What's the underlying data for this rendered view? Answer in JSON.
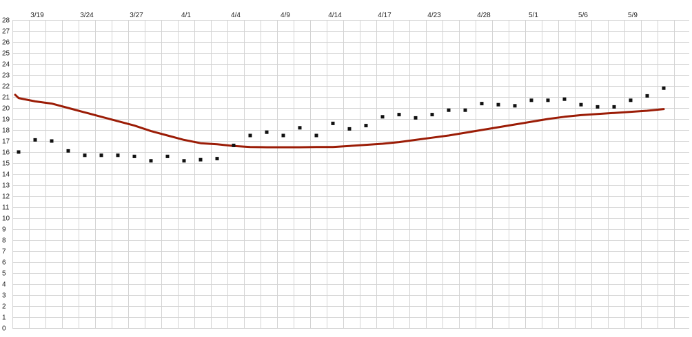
{
  "chart_data": {
    "type": "line",
    "grid": true,
    "ylim": [
      0,
      28
    ],
    "y_ticks": [
      "0",
      "1",
      "2",
      "3",
      "4",
      "5",
      "6",
      "7",
      "8",
      "9",
      "10",
      "11",
      "12",
      "13",
      "14",
      "15",
      "16",
      "17",
      "18",
      "19",
      "20",
      "21",
      "22",
      "23",
      "24",
      "25",
      "26",
      "27",
      "28"
    ],
    "x_tick_labels": [
      "3/19",
      "3/24",
      "3/27",
      "4/1",
      "4/4",
      "4/9",
      "4/14",
      "4/17",
      "4/23",
      "4/28",
      "5/1",
      "5/6",
      "5/9"
    ],
    "colors": {
      "line": "#9b1c06",
      "points": "#111111",
      "grid": "#d3d3d3"
    },
    "series": [
      {
        "type": "line",
        "values": [
          21.2,
          20.9,
          20.6,
          20.4,
          20.0,
          19.6,
          19.2,
          18.8,
          18.4,
          17.9,
          17.5,
          17.1,
          16.8,
          16.7,
          16.55,
          16.45,
          16.43,
          16.43,
          16.43,
          16.45,
          16.45,
          16.55,
          16.65,
          16.75,
          16.9,
          17.1,
          17.3,
          17.5,
          17.75,
          18.0,
          18.25,
          18.5,
          18.75,
          19.0,
          19.2,
          19.35,
          19.45,
          19.55,
          19.65,
          19.75,
          19.9
        ]
      },
      {
        "type": "scatter",
        "values": [
          16.0,
          17.1,
          17.0,
          16.1,
          15.7,
          15.7,
          15.7,
          15.6,
          15.2,
          15.6,
          15.2,
          15.3,
          15.4,
          16.6,
          17.5,
          17.8,
          17.5,
          18.2,
          17.5,
          18.6,
          18.1,
          18.4,
          19.2,
          19.4,
          19.1,
          19.4,
          19.8,
          19.8,
          20.4,
          20.3,
          20.2,
          20.7,
          20.7,
          20.8,
          20.3,
          20.1,
          20.1,
          20.7,
          21.1,
          21.8
        ]
      }
    ]
  }
}
